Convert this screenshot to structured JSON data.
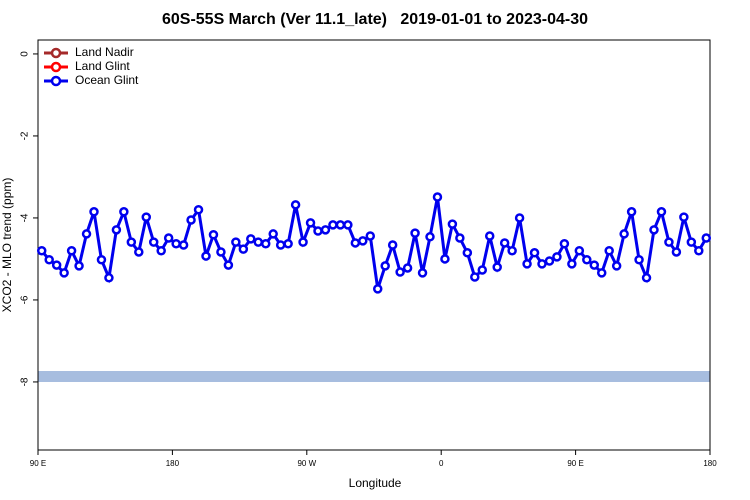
{
  "chart_data": {
    "type": "line",
    "title": "60S-55S March (Ver 11.1_late)   2019-01-01 to 2023-04-30",
    "xlabel": "Longitude",
    "ylabel": "XCO2 - MLO trend (ppm)",
    "xlim": [
      90,
      540
    ],
    "ylim": [
      -9.66,
      0.34
    ],
    "xticks": [
      {
        "value": 90,
        "label": "90 E"
      },
      180,
      {
        "value": 270,
        "label": "90 W"
      },
      {
        "value": 360,
        "label": "0"
      },
      {
        "value": 450,
        "label": "90 E"
      },
      {
        "value": 540,
        "label": "180"
      }
    ],
    "yticks": [
      0,
      -2,
      -4,
      -6,
      -8
    ],
    "legend": "top-left",
    "x": [
      92.5,
      97.5,
      102.5,
      107.5,
      112.5,
      117.5,
      122.5,
      127.5,
      132.5,
      137.5,
      142.5,
      147.5,
      152.5,
      157.5,
      162.5,
      167.5,
      172.5,
      177.5,
      182.5,
      187.5,
      192.5,
      197.5,
      202.5,
      207.5,
      212.5,
      217.5,
      222.5,
      227.5,
      232.5,
      237.5,
      242.5,
      247.5,
      252.5,
      257.5,
      262.5,
      267.5,
      272.5,
      277.5,
      282.5,
      287.5,
      292.5,
      297.5,
      302.5,
      307.5,
      312.5,
      317.5,
      322.5,
      327.5,
      332.5,
      337.5,
      342.5,
      347.5,
      352.5,
      357.5,
      362.5,
      367.5,
      372.5,
      377.5,
      382.5,
      387.5,
      392.5,
      397.5,
      402.5,
      407.5,
      412.5,
      417.5,
      422.5,
      427.5,
      432.5,
      437.5,
      442.5,
      447.5,
      452.5,
      457.5,
      462.5,
      467.5,
      472.5,
      477.5,
      482.5,
      487.5,
      492.5,
      497.5,
      502.5,
      507.5,
      512.5,
      517.5,
      522.5,
      527.5,
      532.5,
      537.5
    ],
    "series": [
      {
        "name": "Land Nadir",
        "color": "#a52a2a",
        "values": [
          null,
          null,
          null,
          null,
          null,
          null,
          null,
          null,
          null,
          null,
          null,
          null,
          null,
          null,
          null,
          null,
          null,
          null,
          null,
          null,
          null,
          null,
          null,
          null,
          null,
          null,
          null,
          null,
          null,
          null,
          null,
          null,
          null,
          null,
          null,
          null,
          null,
          null,
          null,
          null,
          null,
          null,
          null,
          null,
          null,
          null,
          null,
          null,
          null,
          null,
          null,
          null,
          null,
          null,
          null,
          null,
          null,
          null,
          null,
          null,
          null,
          null,
          null,
          null,
          null,
          null,
          null,
          null,
          null,
          null,
          null,
          null,
          null,
          null,
          null,
          null,
          null,
          null,
          null,
          null,
          null,
          null,
          null,
          null,
          null,
          null,
          null,
          null,
          null,
          null
        ]
      },
      {
        "name": "Land Glint",
        "color": "#ff0000",
        "values": [
          null,
          null,
          null,
          null,
          null,
          null,
          null,
          null,
          null,
          null,
          null,
          null,
          null,
          null,
          null,
          null,
          null,
          null,
          null,
          null,
          null,
          null,
          null,
          null,
          null,
          null,
          null,
          null,
          null,
          null,
          null,
          null,
          null,
          null,
          null,
          null,
          null,
          null,
          null,
          null,
          null,
          null,
          null,
          null,
          null,
          null,
          null,
          null,
          null,
          null,
          null,
          null,
          null,
          null,
          null,
          null,
          null,
          null,
          null,
          null,
          null,
          null,
          null,
          null,
          null,
          null,
          null,
          null,
          null,
          null,
          null,
          null,
          null,
          null,
          null,
          null,
          null,
          null,
          null,
          null,
          null,
          null,
          null,
          null,
          null,
          null,
          null,
          null,
          null,
          null
        ]
      },
      {
        "name": "Ocean Glint",
        "color": "#0000ee",
        "values": [
          -4.8,
          -5.02,
          -5.15,
          -5.34,
          -4.8,
          -5.17,
          -4.39,
          -3.85,
          -5.02,
          -5.46,
          -4.29,
          -3.85,
          -4.59,
          -4.83,
          -3.98,
          -4.59,
          -4.8,
          -4.49,
          -4.63,
          -4.66,
          -4.05,
          -3.8,
          -4.93,
          -4.41,
          -4.83,
          -5.15,
          -4.59,
          -4.76,
          -4.51,
          -4.59,
          -4.63,
          -4.39,
          -4.66,
          -4.63,
          -3.68,
          -4.59,
          -4.12,
          -4.32,
          -4.29,
          -4.17,
          -4.17,
          -4.17,
          -4.61,
          -4.56,
          -4.44,
          -5.73,
          -5.17,
          -4.66,
          -5.32,
          -5.22,
          -4.37,
          -5.34,
          -4.46,
          -3.49,
          -5.0,
          -4.15,
          -4.49,
          -4.85,
          -5.44,
          -5.27,
          -4.44,
          -5.2,
          -4.61,
          -4.8,
          -4.0,
          -5.12,
          -4.85,
          -5.12,
          -5.05,
          -4.95,
          -4.63,
          -5.12,
          -4.8,
          -5.02,
          -5.15,
          -5.34,
          -4.8,
          -5.17,
          -4.39,
          -3.85,
          -5.02,
          -5.46,
          -4.29,
          -3.85,
          -4.59,
          -4.83,
          -3.98,
          -4.59,
          -4.8,
          -4.49
        ]
      }
    ]
  }
}
